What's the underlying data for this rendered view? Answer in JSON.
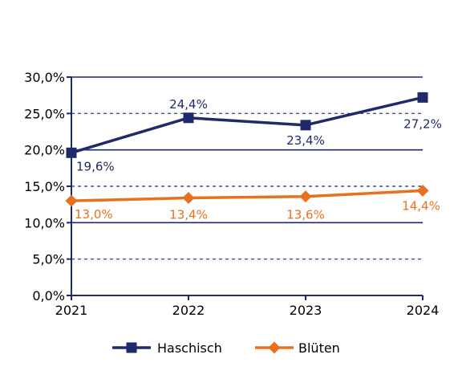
{
  "chart_data": {
    "type": "line",
    "categories": [
      "2021",
      "2022",
      "2023",
      "2024"
    ],
    "series": [
      {
        "name": "Haschisch",
        "values": [
          19.6,
          24.4,
          23.4,
          27.2
        ],
        "labels": [
          "19,6%",
          "24,4%",
          "23,4%",
          "27,2%"
        ],
        "color": "#1f2a6b",
        "marker": "square"
      },
      {
        "name": "Blüten",
        "values": [
          13.0,
          13.4,
          13.6,
          14.4
        ],
        "labels": [
          "13,0%",
          "13,4%",
          "13,6%",
          "14,4%"
        ],
        "color": "#e8701e",
        "marker": "diamond"
      }
    ],
    "y_ticks": [
      0,
      5,
      10,
      15,
      20,
      25,
      30
    ],
    "y_tick_labels": [
      "0,0%",
      "5,0%",
      "10,0%",
      "15,0%",
      "20,0%",
      "25,0%",
      "30,0%"
    ],
    "ylim": [
      0,
      30
    ],
    "axis_color": "#1f2a6b",
    "grid": true,
    "legend_position": "bottom"
  }
}
